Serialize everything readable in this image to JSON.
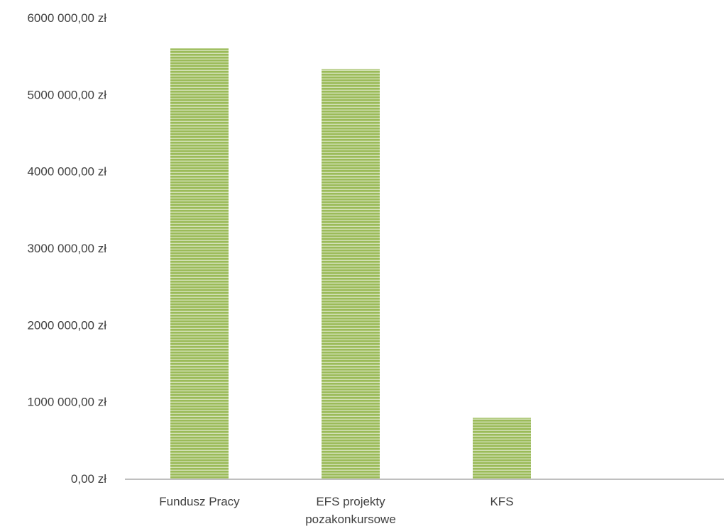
{
  "chart_data": {
    "type": "bar",
    "categories": [
      [
        "Fundusz Pracy"
      ],
      [
        "EFS projekty",
        "pozakonkursowe"
      ],
      [
        "KFS"
      ],
      [
        ""
      ]
    ],
    "values": [
      5600000,
      5330000,
      790000,
      null
    ],
    "ylim": [
      0,
      6000000
    ],
    "yticks": [
      0,
      1000000,
      2000000,
      3000000,
      4000000,
      5000000,
      6000000
    ],
    "ytick_labels": [
      "0,00 zł",
      "1000 000,00 zł",
      "2000 000,00 zł",
      "3000 000,00 zł",
      "4000 000,00 zł",
      "5000 000,00 zł",
      "6000 000,00 zł"
    ],
    "grid": false,
    "legend": "none",
    "colors": {
      "bar_fill": "#9bbb59",
      "bar_stripe": "#ffffff",
      "axis_line": "#bfbfbf",
      "text": "#404040"
    }
  }
}
